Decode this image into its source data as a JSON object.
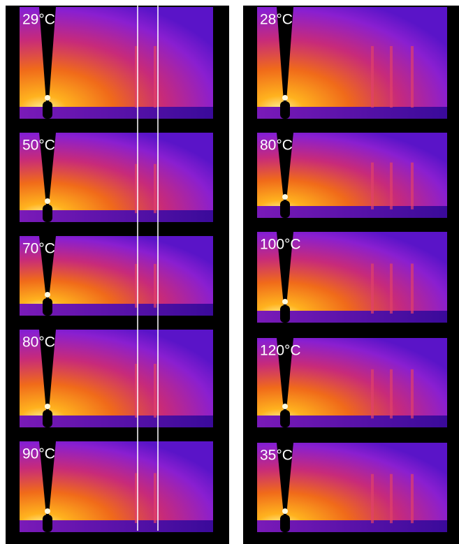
{
  "left_panels": [
    {
      "label": "29°C"
    },
    {
      "label": "50°C"
    },
    {
      "label": "70°C"
    },
    {
      "label": "80°C"
    },
    {
      "label": "90°C"
    }
  ],
  "right_panels": [
    {
      "label": "28°C"
    },
    {
      "label": "80°C"
    },
    {
      "label": "100°C"
    },
    {
      "label": "120°C"
    },
    {
      "label": "35°C"
    }
  ]
}
